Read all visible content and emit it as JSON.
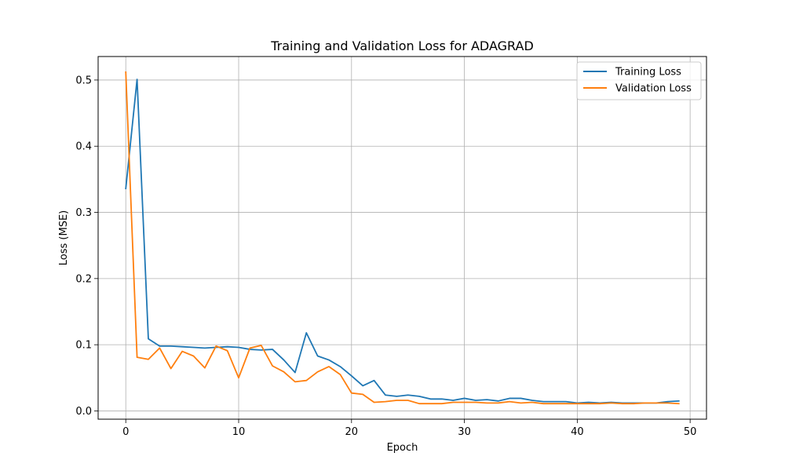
{
  "chart_data": {
    "type": "line",
    "title": "Training and Validation Loss for ADAGRAD",
    "xlabel": "Epoch",
    "ylabel": "Loss (MSE)",
    "xlim": [
      -2.45,
      51.45
    ],
    "ylim": [
      -0.0125,
      0.5355
    ],
    "xticks": [
      0,
      10,
      20,
      30,
      40,
      50
    ],
    "yticks": [
      0.0,
      0.1,
      0.2,
      0.3,
      0.4,
      0.5
    ],
    "xtick_labels": [
      "0",
      "10",
      "20",
      "30",
      "40",
      "50"
    ],
    "ytick_labels": [
      "0.0",
      "0.1",
      "0.2",
      "0.3",
      "0.4",
      "0.5"
    ],
    "grid": true,
    "legend_position": "top-right",
    "x": [
      0,
      1,
      2,
      3,
      4,
      5,
      6,
      7,
      8,
      9,
      10,
      11,
      12,
      13,
      14,
      15,
      16,
      17,
      18,
      19,
      20,
      21,
      22,
      23,
      24,
      25,
      26,
      27,
      28,
      29,
      30,
      31,
      32,
      33,
      34,
      35,
      36,
      37,
      38,
      39,
      40,
      41,
      42,
      43,
      44,
      45,
      46,
      47,
      48,
      49
    ],
    "series": [
      {
        "name": "Training Loss",
        "color": "#1f77b4",
        "values": [
          0.336,
          0.501,
          0.109,
          0.098,
          0.098,
          0.097,
          0.096,
          0.095,
          0.096,
          0.097,
          0.096,
          0.093,
          0.092,
          0.093,
          0.077,
          0.058,
          0.118,
          0.083,
          0.077,
          0.067,
          0.053,
          0.038,
          0.046,
          0.024,
          0.022,
          0.024,
          0.022,
          0.018,
          0.018,
          0.016,
          0.019,
          0.016,
          0.017,
          0.015,
          0.019,
          0.019,
          0.016,
          0.014,
          0.014,
          0.014,
          0.012,
          0.013,
          0.012,
          0.013,
          0.012,
          0.012,
          0.012,
          0.012,
          0.014,
          0.015
        ]
      },
      {
        "name": "Validation Loss",
        "color": "#ff7f0e",
        "values": [
          0.512,
          0.081,
          0.078,
          0.095,
          0.064,
          0.09,
          0.083,
          0.065,
          0.098,
          0.091,
          0.05,
          0.095,
          0.099,
          0.068,
          0.059,
          0.044,
          0.046,
          0.059,
          0.067,
          0.055,
          0.027,
          0.025,
          0.013,
          0.014,
          0.016,
          0.016,
          0.011,
          0.011,
          0.011,
          0.013,
          0.013,
          0.013,
          0.012,
          0.012,
          0.014,
          0.012,
          0.013,
          0.011,
          0.011,
          0.011,
          0.011,
          0.011,
          0.011,
          0.012,
          0.011,
          0.011,
          0.012,
          0.012,
          0.012,
          0.011
        ]
      }
    ]
  }
}
